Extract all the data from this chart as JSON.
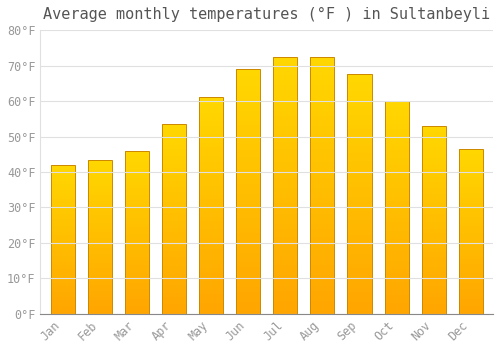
{
  "months": [
    "Jan",
    "Feb",
    "Mar",
    "Apr",
    "May",
    "Jun",
    "Jul",
    "Aug",
    "Sep",
    "Oct",
    "Nov",
    "Dec"
  ],
  "values": [
    42,
    43.5,
    46,
    53.5,
    61,
    69,
    72.5,
    72.5,
    67.5,
    60,
    53,
    46.5
  ],
  "bar_color_bottom": "#FFA500",
  "bar_color_top": "#FFD700",
  "bar_edge_color": "#CC8800",
  "background_color": "#FFFFFF",
  "title": "Average monthly temperatures (°F ) in Sultanbeyli",
  "title_fontsize": 11,
  "tick_label_color": "#999999",
  "grid_color": "#e0e0e0",
  "ylim": [
    0,
    80
  ],
  "yticks": [
    0,
    10,
    20,
    30,
    40,
    50,
    60,
    70,
    80
  ],
  "ytick_labels": [
    "0°F",
    "10°F",
    "20°F",
    "30°F",
    "40°F",
    "50°F",
    "60°F",
    "70°F",
    "80°F"
  ],
  "bar_width": 0.65,
  "n_gradient_steps": 100
}
